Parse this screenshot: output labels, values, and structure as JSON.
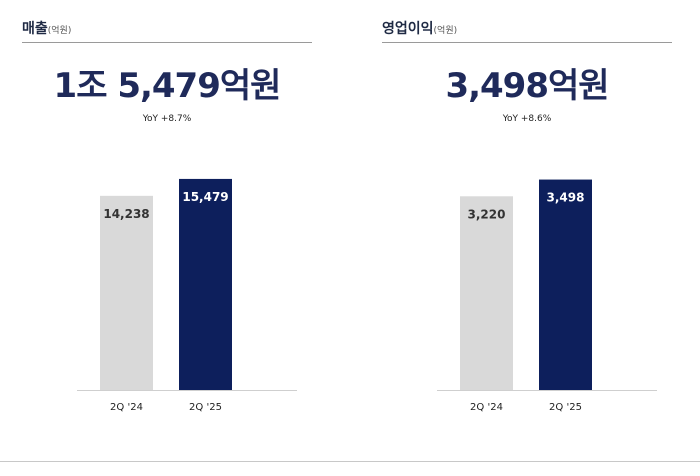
{
  "panels": [
    {
      "title": "매출",
      "unit": "(억원)",
      "headline": "1조 5,479억원",
      "yoy": "YoY +8.7%"
    },
    {
      "title": "영업이익",
      "unit": "(억원)",
      "headline": "3,498억원",
      "yoy": "YoY +8.6%"
    }
  ],
  "colors": {
    "prior_bar": "#d9d9d9",
    "current_bar": "#0d1f5c",
    "prior_label": "#333333",
    "current_label": "#ffffff"
  },
  "chart_data": [
    {
      "type": "bar",
      "title": "매출",
      "categories": [
        "2Q '24",
        "2Q '25"
      ],
      "values": [
        14238,
        15479
      ],
      "value_labels": [
        "14,238",
        "15,479"
      ],
      "ylim": [
        0,
        16500
      ],
      "grid": false,
      "legend": "none"
    },
    {
      "type": "bar",
      "title": "영업이익",
      "categories": [
        "2Q '24",
        "2Q '25"
      ],
      "values": [
        3220,
        3498
      ],
      "value_labels": [
        "3,220",
        "3,498"
      ],
      "ylim": [
        0,
        3740
      ],
      "grid": false,
      "legend": "none"
    }
  ]
}
